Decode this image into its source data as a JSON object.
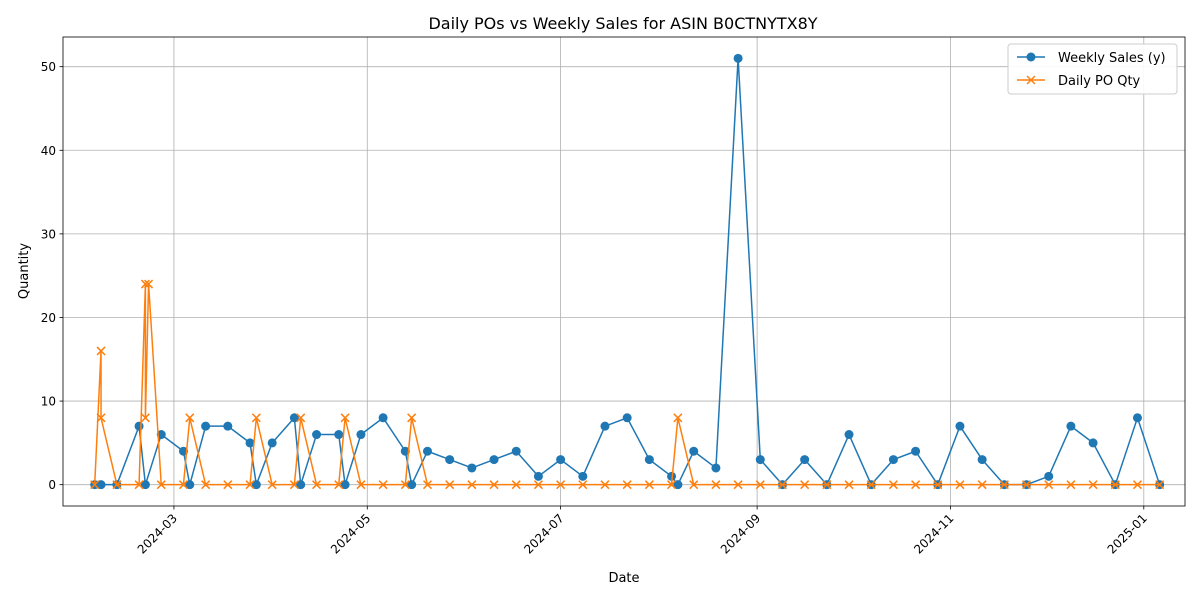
{
  "chart_data": {
    "type": "line",
    "title": "Daily POs vs Weekly Sales for ASIN B0CTNYTX8Y",
    "xlabel": "Date",
    "ylabel": "Quantity",
    "xlim": [
      "2024-01-26",
      "2025-01-14"
    ],
    "ylim": [
      -2.55,
      53.55
    ],
    "yticks": [
      0,
      10,
      20,
      30,
      40,
      50
    ],
    "xticks": [
      "2024-03-01",
      "2024-05-01",
      "2024-07-01",
      "2024-09-01",
      "2024-11-01",
      "2025-01-01"
    ],
    "xtick_labels": [
      "2024-03",
      "2024-05",
      "2024-07",
      "2024-09",
      "2024-11",
      "2025-01"
    ],
    "grid": true,
    "legend_position": "top-right",
    "series": [
      {
        "name": "Weekly Sales (y)",
        "color": "#1f77b4",
        "marker": "circle",
        "points": [
          [
            "2024-02-05",
            0
          ],
          [
            "2024-02-07",
            0
          ],
          [
            "2024-02-12",
            0
          ],
          [
            "2024-02-19",
            7
          ],
          [
            "2024-02-21",
            0
          ],
          [
            "2024-02-26",
            6
          ],
          [
            "2024-03-04",
            4
          ],
          [
            "2024-03-06",
            0
          ],
          [
            "2024-03-11",
            7
          ],
          [
            "2024-03-18",
            7
          ],
          [
            "2024-03-25",
            5
          ],
          [
            "2024-03-27",
            0
          ],
          [
            "2024-04-01",
            5
          ],
          [
            "2024-04-08",
            8
          ],
          [
            "2024-04-10",
            0
          ],
          [
            "2024-04-15",
            6
          ],
          [
            "2024-04-22",
            6
          ],
          [
            "2024-04-24",
            0
          ],
          [
            "2024-04-29",
            6
          ],
          [
            "2024-05-06",
            8
          ],
          [
            "2024-05-13",
            4
          ],
          [
            "2024-05-15",
            0
          ],
          [
            "2024-05-20",
            4
          ],
          [
            "2024-05-27",
            3
          ],
          [
            "2024-06-03",
            2
          ],
          [
            "2024-06-10",
            3
          ],
          [
            "2024-06-17",
            4
          ],
          [
            "2024-06-24",
            1
          ],
          [
            "2024-07-01",
            3
          ],
          [
            "2024-07-08",
            1
          ],
          [
            "2024-07-15",
            7
          ],
          [
            "2024-07-22",
            8
          ],
          [
            "2024-07-29",
            3
          ],
          [
            "2024-08-05",
            1
          ],
          [
            "2024-08-07",
            0
          ],
          [
            "2024-08-12",
            4
          ],
          [
            "2024-08-19",
            2
          ],
          [
            "2024-08-26",
            51
          ],
          [
            "2024-09-02",
            3
          ],
          [
            "2024-09-09",
            0
          ],
          [
            "2024-09-16",
            3
          ],
          [
            "2024-09-23",
            0
          ],
          [
            "2024-09-30",
            6
          ],
          [
            "2024-10-07",
            0
          ],
          [
            "2024-10-14",
            3
          ],
          [
            "2024-10-21",
            4
          ],
          [
            "2024-10-28",
            0
          ],
          [
            "2024-11-04",
            7
          ],
          [
            "2024-11-11",
            3
          ],
          [
            "2024-11-18",
            0
          ],
          [
            "2024-11-25",
            0
          ],
          [
            "2024-12-02",
            1
          ],
          [
            "2024-12-09",
            7
          ],
          [
            "2024-12-16",
            5
          ],
          [
            "2024-12-23",
            0
          ],
          [
            "2024-12-30",
            8
          ],
          [
            "2025-01-06",
            0
          ]
        ]
      },
      {
        "name": "Daily PO Qty",
        "color": "#ff7f0e",
        "marker": "x",
        "points": [
          [
            "2024-02-05",
            0
          ],
          [
            "2024-02-07",
            16
          ],
          [
            "2024-02-07",
            8
          ],
          [
            "2024-02-12",
            0
          ],
          [
            "2024-02-19",
            0
          ],
          [
            "2024-02-21",
            24
          ],
          [
            "2024-02-21",
            8
          ],
          [
            "2024-02-22",
            24
          ],
          [
            "2024-02-26",
            0
          ],
          [
            "2024-03-04",
            0
          ],
          [
            "2024-03-06",
            8
          ],
          [
            "2024-03-11",
            0
          ],
          [
            "2024-03-18",
            0
          ],
          [
            "2024-03-25",
            0
          ],
          [
            "2024-03-27",
            8
          ],
          [
            "2024-04-01",
            0
          ],
          [
            "2024-04-08",
            0
          ],
          [
            "2024-04-10",
            8
          ],
          [
            "2024-04-15",
            0
          ],
          [
            "2024-04-22",
            0
          ],
          [
            "2024-04-24",
            8
          ],
          [
            "2024-04-29",
            0
          ],
          [
            "2024-05-06",
            0
          ],
          [
            "2024-05-13",
            0
          ],
          [
            "2024-05-15",
            8
          ],
          [
            "2024-05-20",
            0
          ],
          [
            "2024-05-27",
            0
          ],
          [
            "2024-06-03",
            0
          ],
          [
            "2024-06-10",
            0
          ],
          [
            "2024-06-17",
            0
          ],
          [
            "2024-06-24",
            0
          ],
          [
            "2024-07-01",
            0
          ],
          [
            "2024-07-08",
            0
          ],
          [
            "2024-07-15",
            0
          ],
          [
            "2024-07-22",
            0
          ],
          [
            "2024-07-29",
            0
          ],
          [
            "2024-08-05",
            0
          ],
          [
            "2024-08-07",
            8
          ],
          [
            "2024-08-12",
            0
          ],
          [
            "2024-08-19",
            0
          ],
          [
            "2024-08-26",
            0
          ],
          [
            "2024-09-02",
            0
          ],
          [
            "2024-09-09",
            0
          ],
          [
            "2024-09-16",
            0
          ],
          [
            "2024-09-23",
            0
          ],
          [
            "2024-09-30",
            0
          ],
          [
            "2024-10-07",
            0
          ],
          [
            "2024-10-14",
            0
          ],
          [
            "2024-10-21",
            0
          ],
          [
            "2024-10-28",
            0
          ],
          [
            "2024-11-04",
            0
          ],
          [
            "2024-11-11",
            0
          ],
          [
            "2024-11-18",
            0
          ],
          [
            "2024-11-25",
            0
          ],
          [
            "2024-12-02",
            0
          ],
          [
            "2024-12-09",
            0
          ],
          [
            "2024-12-16",
            0
          ],
          [
            "2024-12-23",
            0
          ],
          [
            "2024-12-30",
            0
          ],
          [
            "2025-01-06",
            0
          ]
        ]
      }
    ]
  }
}
